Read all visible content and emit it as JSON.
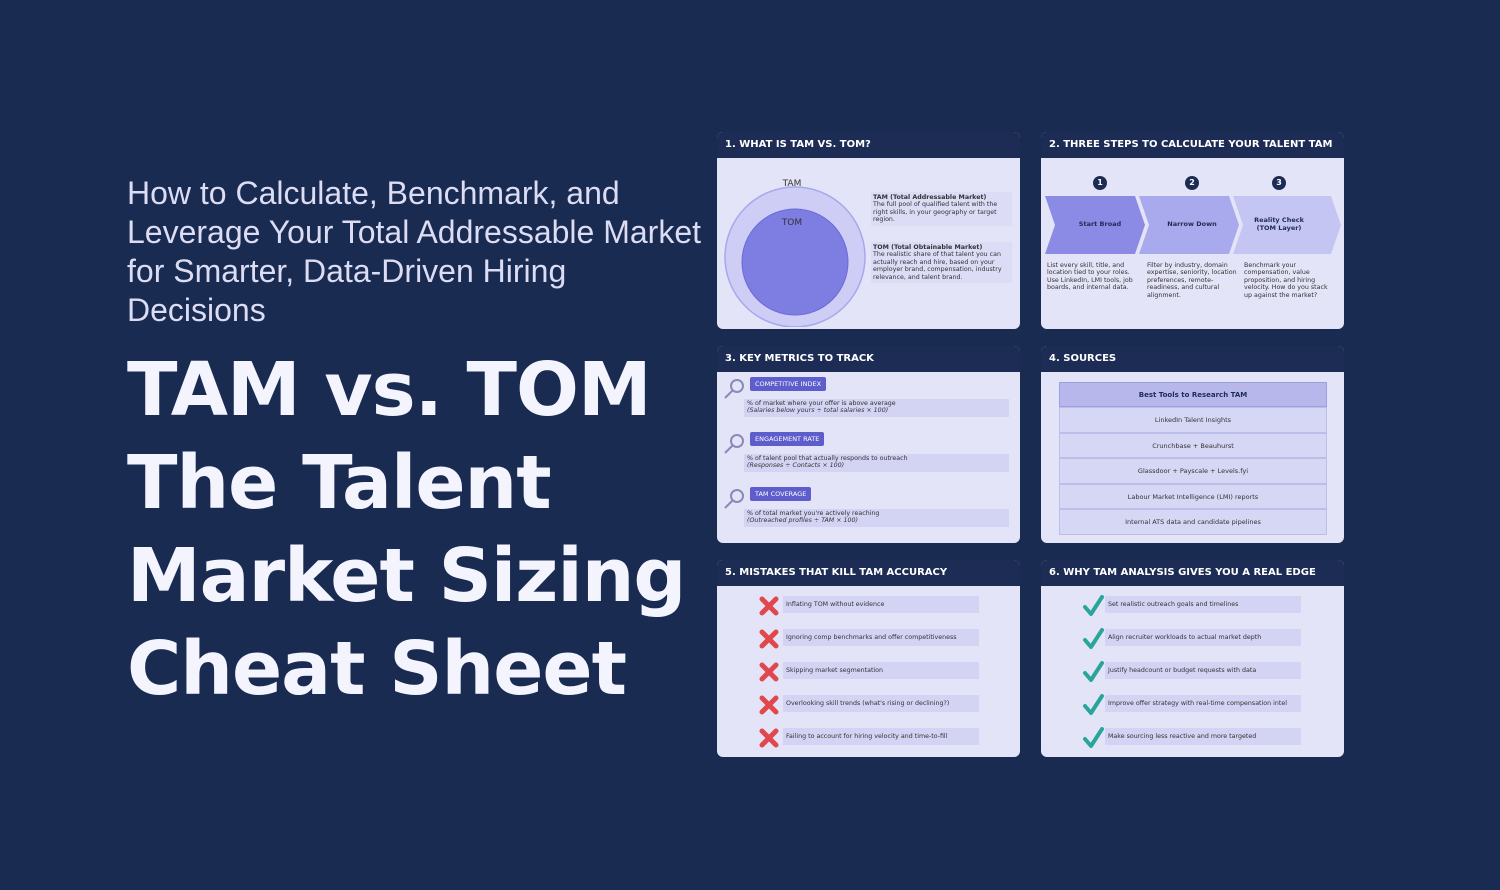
{
  "header": {
    "subtitle": "How to Calculate, Benchmark, and Leverage Your Total Addressable Market for Smarter, Data-Driven Hiring Decisions",
    "title_lines": [
      "TAM vs. TOM",
      "The Talent",
      "Market Sizing",
      "Cheat Sheet"
    ]
  },
  "cards": [
    {
      "title": "1. WHAT IS TAM VS. TOM?",
      "outer_label": "TAM",
      "inner_label": "TOM",
      "definitions": [
        {
          "term": "TAM (Total Addressable Market)",
          "text": "The full pool of qualified talent with the right skills, in your geography or target region."
        },
        {
          "term": "TOM (Total Obtainable Market)",
          "text": "The realistic share of that talent you can actually reach and hire, based on your employer brand, compensation, industry relevance, and talent brand."
        }
      ]
    },
    {
      "title": "2. THREE STEPS TO CALCULATE YOUR TALENT TAM",
      "steps": [
        {
          "number": 1,
          "label": "Start Broad",
          "text": "List every skill, title, and location tied to your roles. Use LinkedIn, LMI tools, job boards, and internal data."
        },
        {
          "number": 2,
          "label": "Narrow Down",
          "text": "Filter by industry, domain expertise, seniority, location preferences, remote-readiness, and cultural alignment."
        },
        {
          "number": 3,
          "label": "Reality Check (TOM Layer)",
          "text": "Benchmark your compensation, value proposition, and hiring velocity. How do you stack up against the market?"
        }
      ]
    },
    {
      "title": "3. KEY METRICS TO TRACK",
      "metrics": [
        {
          "label": "COMPETITIVE INDEX",
          "text": "% of market where your offer is above average",
          "formula": "(Salaries below yours ÷ total salaries × 100)"
        },
        {
          "label": "ENGAGEMENT RATE",
          "text": "% of talent pool that actually responds to outreach",
          "formula": "(Responses ÷ Contacts × 100)"
        },
        {
          "label": "TAM COVERAGE",
          "text": "% of total market you're actively reaching",
          "formula": "(Outreached profiles ÷ TAM × 100)"
        }
      ]
    },
    {
      "title": "4. SOURCES",
      "table_header": "Best Tools to Research TAM",
      "rows": [
        "LinkedIn Talent Insights",
        "Crunchbase + Beauhurst",
        "Glassdoor + Payscale + Levels.fyi",
        "Labour Market Intelligence (LMI) reports",
        "Internal ATS data and candidate pipelines"
      ]
    },
    {
      "title": "5. MISTAKES THAT KILL TAM ACCURACY",
      "items": [
        "Inflating TOM without evidence",
        "Ignoring comp benchmarks and offer competitiveness",
        "Skipping market segmentation",
        "Overlooking skill trends (what's rising or declining?)",
        "Failing to account for hiring velocity and time-to-fill"
      ]
    },
    {
      "title": "6. WHY TAM ANALYSIS GIVES YOU A REAL EDGE",
      "items": [
        "Set realistic outreach goals and timelines",
        "Align recruiter workloads to actual market depth",
        "Justify headcount or budget requests with data",
        "Improve offer strategy with real-time compensation intel",
        "Make sourcing less reactive and more targeted"
      ]
    }
  ]
}
